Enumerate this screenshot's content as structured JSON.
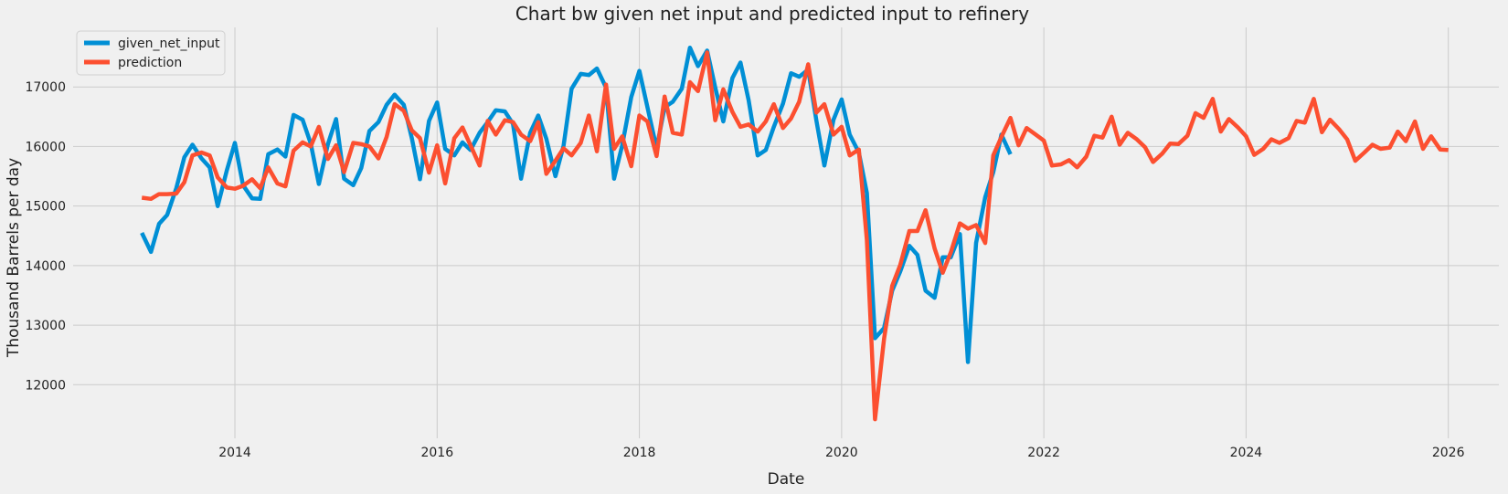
{
  "chart_data": {
    "type": "line",
    "title": "Chart bw given net input and predicted input to refinery",
    "xlabel": "Date",
    "ylabel": "Thousand Barrels per day",
    "xlim": [
      2012.4,
      2026.5
    ],
    "ylim": [
      11100,
      18000
    ],
    "x_ticks": [
      2014,
      2016,
      2018,
      2020,
      2022,
      2024,
      2026
    ],
    "y_ticks": [
      12000,
      13000,
      14000,
      15000,
      16000,
      17000
    ],
    "grid": true,
    "legend_position": "top-left",
    "series": [
      {
        "name": "given_net_input",
        "color": "#008fd5",
        "points": [
          [
            2013.08,
            14550
          ],
          [
            2013.17,
            14230
          ],
          [
            2013.25,
            14700
          ],
          [
            2013.33,
            14850
          ],
          [
            2013.42,
            15300
          ],
          [
            2013.5,
            15820
          ],
          [
            2013.58,
            16030
          ],
          [
            2013.67,
            15800
          ],
          [
            2013.75,
            15650
          ],
          [
            2013.83,
            15000
          ],
          [
            2013.92,
            15600
          ],
          [
            2014.0,
            16060
          ],
          [
            2014.08,
            15350
          ],
          [
            2014.17,
            15130
          ],
          [
            2014.25,
            15120
          ],
          [
            2014.33,
            15870
          ],
          [
            2014.42,
            15950
          ],
          [
            2014.5,
            15830
          ],
          [
            2014.58,
            16530
          ],
          [
            2014.67,
            16450
          ],
          [
            2014.75,
            16050
          ],
          [
            2014.83,
            15370
          ],
          [
            2014.92,
            16040
          ],
          [
            2015.0,
            16460
          ],
          [
            2015.08,
            15460
          ],
          [
            2015.17,
            15350
          ],
          [
            2015.25,
            15640
          ],
          [
            2015.33,
            16260
          ],
          [
            2015.42,
            16410
          ],
          [
            2015.5,
            16700
          ],
          [
            2015.58,
            16870
          ],
          [
            2015.67,
            16700
          ],
          [
            2015.75,
            16140
          ],
          [
            2015.83,
            15450
          ],
          [
            2015.92,
            16430
          ],
          [
            2016.0,
            16740
          ],
          [
            2016.08,
            15960
          ],
          [
            2016.17,
            15850
          ],
          [
            2016.25,
            16070
          ],
          [
            2016.33,
            15940
          ],
          [
            2016.42,
            16230
          ],
          [
            2016.5,
            16410
          ],
          [
            2016.58,
            16610
          ],
          [
            2016.67,
            16590
          ],
          [
            2016.75,
            16380
          ],
          [
            2016.83,
            15460
          ],
          [
            2016.92,
            16230
          ],
          [
            2017.0,
            16520
          ],
          [
            2017.08,
            16130
          ],
          [
            2017.17,
            15500
          ],
          [
            2017.25,
            16010
          ],
          [
            2017.33,
            16970
          ],
          [
            2017.42,
            17220
          ],
          [
            2017.5,
            17200
          ],
          [
            2017.58,
            17310
          ],
          [
            2017.67,
            16990
          ],
          [
            2017.75,
            15460
          ],
          [
            2017.83,
            16020
          ],
          [
            2017.92,
            16830
          ],
          [
            2018.0,
            17270
          ],
          [
            2018.08,
            16660
          ],
          [
            2018.17,
            15970
          ],
          [
            2018.25,
            16660
          ],
          [
            2018.33,
            16750
          ],
          [
            2018.42,
            16970
          ],
          [
            2018.5,
            17660
          ],
          [
            2018.58,
            17350
          ],
          [
            2018.67,
            17610
          ],
          [
            2018.75,
            16990
          ],
          [
            2018.83,
            16420
          ],
          [
            2018.92,
            17150
          ],
          [
            2019.0,
            17410
          ],
          [
            2019.08,
            16780
          ],
          [
            2019.17,
            15850
          ],
          [
            2019.25,
            15940
          ],
          [
            2019.33,
            16330
          ],
          [
            2019.42,
            16720
          ],
          [
            2019.5,
            17230
          ],
          [
            2019.58,
            17170
          ],
          [
            2019.67,
            17290
          ],
          [
            2019.75,
            16440
          ],
          [
            2019.83,
            15680
          ],
          [
            2019.92,
            16450
          ],
          [
            2020.0,
            16790
          ],
          [
            2020.08,
            16200
          ],
          [
            2020.17,
            15900
          ],
          [
            2020.25,
            15220
          ],
          [
            2020.33,
            12780
          ],
          [
            2020.42,
            12950
          ],
          [
            2020.5,
            13580
          ],
          [
            2020.58,
            13900
          ],
          [
            2020.67,
            14330
          ],
          [
            2020.75,
            14180
          ],
          [
            2020.83,
            13580
          ],
          [
            2020.92,
            13460
          ],
          [
            2021.0,
            14140
          ],
          [
            2021.08,
            14140
          ],
          [
            2021.17,
            14530
          ],
          [
            2021.25,
            12380
          ],
          [
            2021.33,
            14380
          ],
          [
            2021.42,
            15150
          ],
          [
            2021.5,
            15570
          ],
          [
            2021.58,
            16200
          ],
          [
            2021.67,
            15870
          ]
        ]
      },
      {
        "name": "prediction",
        "color": "#fc4f30",
        "points": [
          [
            2013.08,
            15140
          ],
          [
            2013.17,
            15120
          ],
          [
            2013.25,
            15200
          ],
          [
            2013.33,
            15200
          ],
          [
            2013.42,
            15210
          ],
          [
            2013.5,
            15400
          ],
          [
            2013.58,
            15850
          ],
          [
            2013.67,
            15900
          ],
          [
            2013.75,
            15850
          ],
          [
            2013.83,
            15480
          ],
          [
            2013.92,
            15310
          ],
          [
            2014.0,
            15290
          ],
          [
            2014.08,
            15340
          ],
          [
            2014.17,
            15450
          ],
          [
            2014.25,
            15300
          ],
          [
            2014.33,
            15650
          ],
          [
            2014.42,
            15380
          ],
          [
            2014.5,
            15330
          ],
          [
            2014.58,
            15930
          ],
          [
            2014.67,
            16070
          ],
          [
            2014.75,
            16000
          ],
          [
            2014.83,
            16330
          ],
          [
            2014.92,
            15790
          ],
          [
            2015.0,
            16020
          ],
          [
            2015.08,
            15570
          ],
          [
            2015.17,
            16060
          ],
          [
            2015.25,
            16040
          ],
          [
            2015.33,
            16000
          ],
          [
            2015.42,
            15800
          ],
          [
            2015.5,
            16160
          ],
          [
            2015.58,
            16710
          ],
          [
            2015.67,
            16600
          ],
          [
            2015.75,
            16270
          ],
          [
            2015.83,
            16140
          ],
          [
            2015.92,
            15560
          ],
          [
            2016.0,
            16020
          ],
          [
            2016.08,
            15380
          ],
          [
            2016.17,
            16140
          ],
          [
            2016.25,
            16320
          ],
          [
            2016.33,
            16020
          ],
          [
            2016.42,
            15680
          ],
          [
            2016.5,
            16430
          ],
          [
            2016.58,
            16200
          ],
          [
            2016.67,
            16440
          ],
          [
            2016.75,
            16410
          ],
          [
            2016.83,
            16200
          ],
          [
            2016.92,
            16090
          ],
          [
            2017.0,
            16410
          ],
          [
            2017.08,
            15540
          ],
          [
            2017.17,
            15760
          ],
          [
            2017.25,
            15970
          ],
          [
            2017.33,
            15850
          ],
          [
            2017.42,
            16060
          ],
          [
            2017.5,
            16520
          ],
          [
            2017.58,
            15920
          ],
          [
            2017.67,
            17040
          ],
          [
            2017.75,
            15960
          ],
          [
            2017.83,
            16170
          ],
          [
            2017.92,
            15670
          ],
          [
            2018.0,
            16520
          ],
          [
            2018.08,
            16420
          ],
          [
            2018.17,
            15840
          ],
          [
            2018.25,
            16840
          ],
          [
            2018.33,
            16230
          ],
          [
            2018.42,
            16200
          ],
          [
            2018.5,
            17080
          ],
          [
            2018.58,
            16930
          ],
          [
            2018.67,
            17580
          ],
          [
            2018.75,
            16440
          ],
          [
            2018.83,
            16960
          ],
          [
            2018.92,
            16580
          ],
          [
            2019.0,
            16330
          ],
          [
            2019.08,
            16370
          ],
          [
            2019.17,
            16250
          ],
          [
            2019.25,
            16420
          ],
          [
            2019.33,
            16710
          ],
          [
            2019.42,
            16310
          ],
          [
            2019.5,
            16470
          ],
          [
            2019.58,
            16750
          ],
          [
            2019.67,
            17380
          ],
          [
            2019.75,
            16570
          ],
          [
            2019.83,
            16710
          ],
          [
            2019.92,
            16200
          ],
          [
            2020.0,
            16330
          ],
          [
            2020.08,
            15850
          ],
          [
            2020.17,
            15950
          ],
          [
            2020.25,
            14430
          ],
          [
            2020.33,
            11420
          ],
          [
            2020.42,
            12770
          ],
          [
            2020.5,
            13660
          ],
          [
            2020.58,
            14010
          ],
          [
            2020.67,
            14580
          ],
          [
            2020.75,
            14580
          ],
          [
            2020.83,
            14930
          ],
          [
            2020.92,
            14290
          ],
          [
            2021.0,
            13880
          ],
          [
            2021.08,
            14220
          ],
          [
            2021.17,
            14710
          ],
          [
            2021.25,
            14620
          ],
          [
            2021.33,
            14680
          ],
          [
            2021.42,
            14380
          ],
          [
            2021.5,
            15850
          ],
          [
            2021.58,
            16160
          ],
          [
            2021.67,
            16480
          ],
          [
            2021.75,
            16020
          ],
          [
            2021.83,
            16310
          ],
          [
            2021.92,
            16200
          ],
          [
            2022.0,
            16100
          ],
          [
            2022.08,
            15680
          ],
          [
            2022.17,
            15700
          ],
          [
            2022.25,
            15770
          ],
          [
            2022.33,
            15650
          ],
          [
            2022.42,
            15830
          ],
          [
            2022.5,
            16180
          ],
          [
            2022.58,
            16150
          ],
          [
            2022.67,
            16500
          ],
          [
            2022.75,
            16030
          ],
          [
            2022.83,
            16230
          ],
          [
            2022.92,
            16120
          ],
          [
            2023.0,
            15990
          ],
          [
            2023.08,
            15740
          ],
          [
            2023.17,
            15880
          ],
          [
            2023.25,
            16050
          ],
          [
            2023.33,
            16040
          ],
          [
            2023.42,
            16180
          ],
          [
            2023.5,
            16560
          ],
          [
            2023.58,
            16480
          ],
          [
            2023.67,
            16800
          ],
          [
            2023.75,
            16250
          ],
          [
            2023.83,
            16460
          ],
          [
            2023.92,
            16320
          ],
          [
            2024.0,
            16170
          ],
          [
            2024.08,
            15860
          ],
          [
            2024.17,
            15960
          ],
          [
            2024.25,
            16120
          ],
          [
            2024.33,
            16060
          ],
          [
            2024.42,
            16140
          ],
          [
            2024.5,
            16430
          ],
          [
            2024.58,
            16400
          ],
          [
            2024.67,
            16800
          ],
          [
            2024.75,
            16240
          ],
          [
            2024.83,
            16450
          ],
          [
            2024.92,
            16290
          ],
          [
            2025.0,
            16120
          ],
          [
            2025.08,
            15760
          ],
          [
            2025.17,
            15900
          ],
          [
            2025.25,
            16030
          ],
          [
            2025.33,
            15960
          ],
          [
            2025.42,
            15980
          ],
          [
            2025.5,
            16250
          ],
          [
            2025.58,
            16090
          ],
          [
            2025.67,
            16420
          ],
          [
            2025.75,
            15960
          ],
          [
            2025.83,
            16170
          ],
          [
            2025.92,
            15950
          ],
          [
            2026.0,
            15940
          ]
        ]
      }
    ]
  }
}
